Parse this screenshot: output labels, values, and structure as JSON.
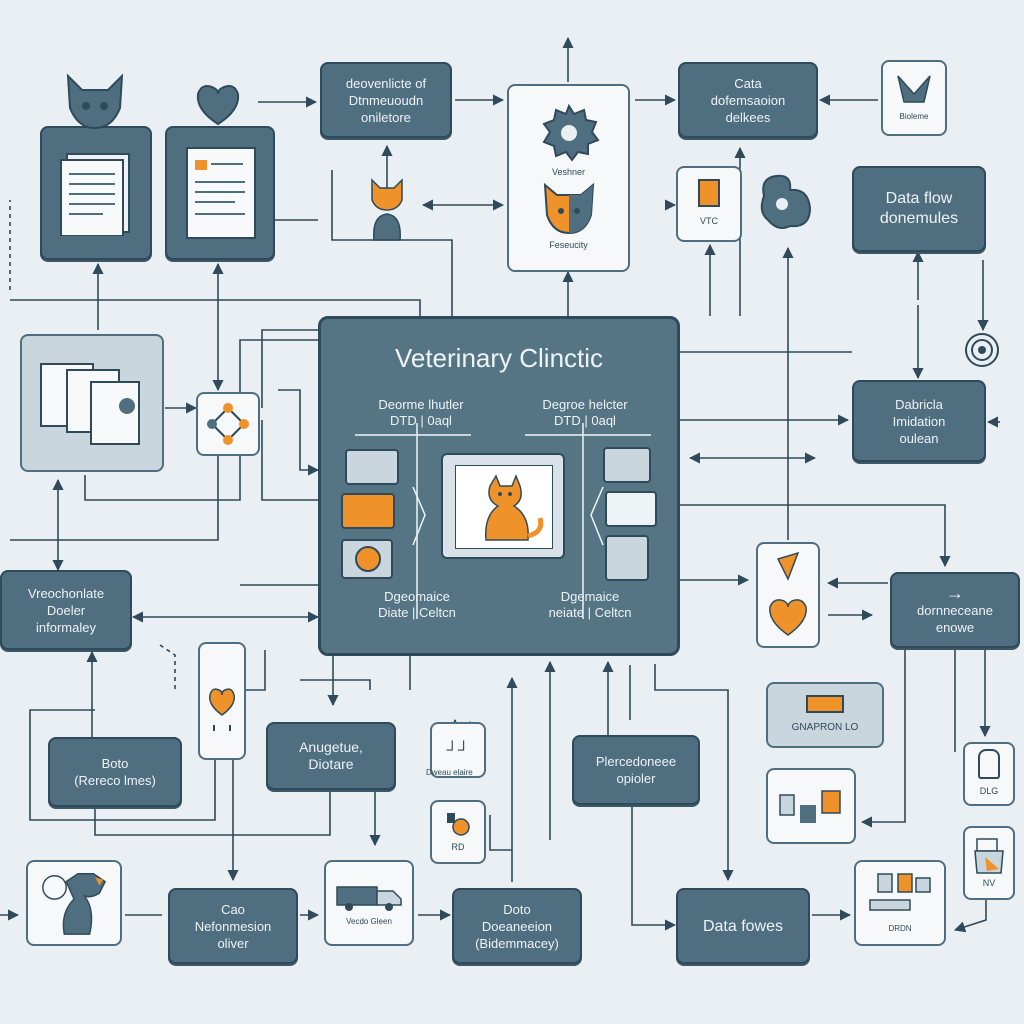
{
  "colors": {
    "box": "#4f6e80",
    "border": "#2f4a5a",
    "accent": "#f0922a",
    "line": "#2f4a5a",
    "bg": "#e9eff3"
  },
  "central": {
    "title": "Veterinary Clinctic",
    "left_top": "Deorme lhutler\nDTD | 0aql",
    "right_top": "Degroe helcter\nDTD | 0aql",
    "left_bottom": "Dgeomaice\nDiate | Celtcn",
    "right_bottom": "Dgemaice\nneiate | Celtcn"
  },
  "nodes": {
    "top_box_1": "deovenlicte of\nDtnmeuoudn\noniletore",
    "top_box_2": "Cata\ndofemsaoion\ndelkees",
    "data_flow_top": "Data flow\ndonemules",
    "right_mid": "Dabricla\nImidation\noulean",
    "left_mid": "Vreochonlate\nDoeler\ninformaley",
    "right_low": "dornneceane\nenowe",
    "orange_box": "GNAPRON LO",
    "bato": "Boto\n(Rereco lmes)",
    "anugetue": "Anugetue,\nDiotare",
    "plercedoneee": "Plercedoneee\nopioler",
    "cao_bottom": "Cao\nNefonmesion\noliver",
    "doto_bottom": "Doto\nDoeaneeion\n(Bidemmacey)",
    "data_fowes": "Data fowes"
  },
  "labels": {
    "gear_label": "Veshner",
    "cat_label": "Feseucity",
    "vtc": "VTC",
    "bioleme": "Bioleme",
    "pill_label": "Dweau elaire",
    "rd": "RD",
    "dlg": "DLG",
    "nv": "NV",
    "truck_label": "Vecdo Gleen",
    "case_label": "DRDN"
  }
}
